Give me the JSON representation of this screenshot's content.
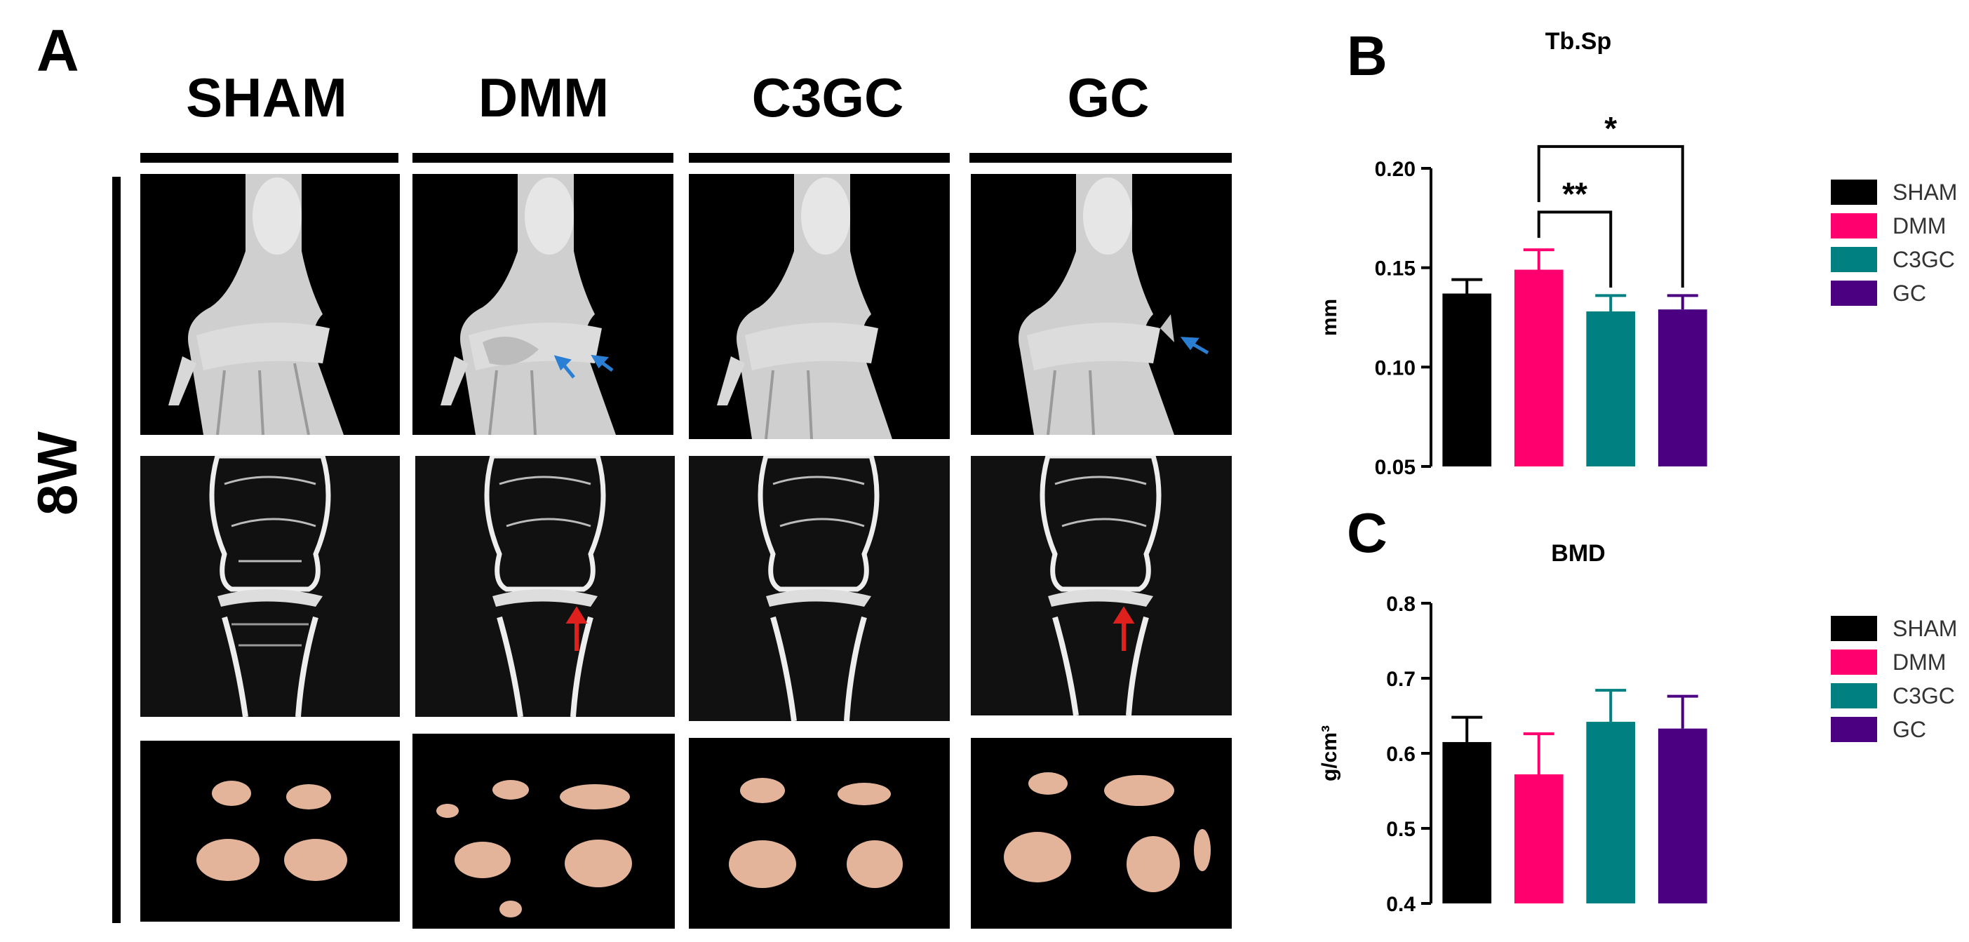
{
  "figure": {
    "panel_a": "A",
    "panel_b": "B",
    "panel_c": "C",
    "columns": [
      "SHAM",
      "DMM",
      "C3GC",
      "GC"
    ],
    "row_label": "8W"
  },
  "colors": {
    "SHAM": "#000000",
    "DMM": "#ff006e",
    "C3GC": "#008080",
    "GC": "#4b0082"
  },
  "chart_data": [
    {
      "type": "bar",
      "title": "Tb.Sp",
      "ylabel": "mm",
      "categories": [
        "SHAM",
        "DMM",
        "C3GC",
        "GC"
      ],
      "values": [
        0.137,
        0.149,
        0.128,
        0.129
      ],
      "errors": [
        0.007,
        0.01,
        0.008,
        0.007
      ],
      "ylim": [
        0.05,
        0.2
      ],
      "yticks": [
        "0.05",
        "0.10",
        "0.15",
        "0.20"
      ],
      "legend": [
        "SHAM",
        "DMM",
        "C3GC",
        "GC"
      ],
      "legend_position": "right",
      "significance": [
        {
          "from": "DMM",
          "to": "C3GC",
          "label": "**"
        },
        {
          "from": "DMM",
          "to": "GC",
          "label": "*"
        }
      ]
    },
    {
      "type": "bar",
      "title": "BMD",
      "ylabel": "g/cm³",
      "categories": [
        "SHAM",
        "DMM",
        "C3GC",
        "GC"
      ],
      "values": [
        0.615,
        0.572,
        0.642,
        0.633
      ],
      "errors": [
        0.033,
        0.054,
        0.042,
        0.043
      ],
      "ylim": [
        0.4,
        0.8
      ],
      "yticks": [
        "0.4",
        "0.5",
        "0.6",
        "0.7",
        "0.8"
      ],
      "legend": [
        "SHAM",
        "DMM",
        "C3GC",
        "GC"
      ],
      "legend_position": "right"
    }
  ]
}
